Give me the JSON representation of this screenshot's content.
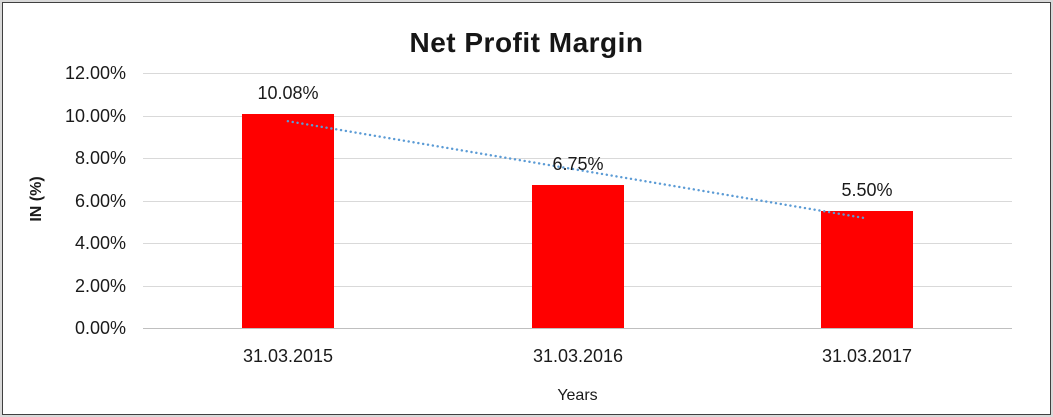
{
  "chart_data": {
    "type": "bar",
    "title": "Net Profit Margin",
    "xlabel": "Years",
    "ylabel": "IN (%)",
    "categories": [
      "31.03.2015",
      "31.03.2016",
      "31.03.2017"
    ],
    "values": [
      10.08,
      6.75,
      5.5
    ],
    "data_labels": [
      "10.08%",
      "6.75%",
      "5.50%"
    ],
    "ylim": [
      0,
      12
    ],
    "yticks": [
      0,
      2,
      4,
      6,
      8,
      10,
      12
    ],
    "ytick_labels": [
      "0.00%",
      "2.00%",
      "4.00%",
      "6.00%",
      "8.00%",
      "10.00%",
      "12.00%"
    ],
    "grid": true,
    "legend": "none",
    "bar_color": "#ff0000",
    "gridline_color": "#d9d9d9",
    "axis_line_color": "#bfbfbf",
    "trendline": {
      "type": "linear",
      "style": "dotted",
      "color": "#5b9bd5",
      "span": "first-to-last-category"
    }
  }
}
